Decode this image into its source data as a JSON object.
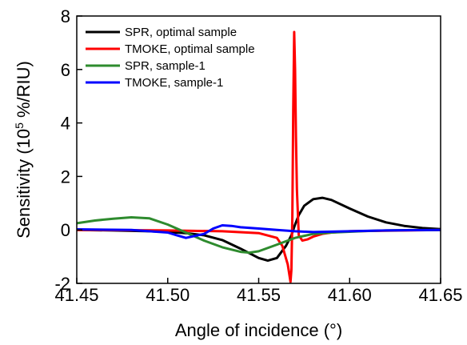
{
  "chart_data": {
    "type": "line",
    "xlabel": "Angle of incidence (°)",
    "ylabel": {
      "prefix": "Sensitivity (10",
      "superscript": "5",
      "suffix": " %/RIU)"
    },
    "xlim": [
      41.45,
      41.65
    ],
    "ylim": [
      -2,
      8
    ],
    "xticks": [
      "41.45",
      "41.50",
      "41.55",
      "41.60",
      "41.65"
    ],
    "yticks": [
      "-2",
      "0",
      "2",
      "4",
      "6",
      "8"
    ],
    "grid": false,
    "legend_position": "top-left",
    "series": [
      {
        "name": "SPR, optimal sample",
        "color": "#000000",
        "x": [
          41.45,
          41.47,
          41.49,
          41.5,
          41.51,
          41.52,
          41.53,
          41.54,
          41.55,
          41.555,
          41.56,
          41.565,
          41.568,
          41.57,
          41.572,
          41.575,
          41.58,
          41.585,
          41.59,
          41.6,
          41.61,
          41.62,
          41.63,
          41.64,
          41.65
        ],
        "y": [
          0.0,
          -0.02,
          -0.05,
          -0.08,
          -0.12,
          -0.2,
          -0.38,
          -0.7,
          -1.05,
          -1.15,
          -1.05,
          -0.6,
          -0.2,
          0.2,
          0.55,
          0.9,
          1.15,
          1.2,
          1.12,
          0.8,
          0.5,
          0.28,
          0.15,
          0.07,
          0.03
        ]
      },
      {
        "name": "TMOKE, optimal sample",
        "color": "#ff0000",
        "x": [
          41.45,
          41.5,
          41.53,
          41.55,
          41.56,
          41.563,
          41.566,
          41.5675,
          41.568,
          41.5685,
          41.569,
          41.5695,
          41.57,
          41.5705,
          41.571,
          41.572,
          41.574,
          41.577,
          41.58,
          41.585,
          41.59,
          41.6,
          41.65
        ],
        "y": [
          0.0,
          -0.02,
          -0.05,
          -0.12,
          -0.3,
          -0.6,
          -1.3,
          -1.95,
          -1.5,
          0.5,
          4.5,
          7.4,
          6.0,
          3.5,
          1.5,
          -0.2,
          -0.4,
          -0.35,
          -0.25,
          -0.15,
          -0.1,
          -0.05,
          0.0
        ]
      },
      {
        "name": "SPR, sample-1",
        "color": "#2e8b2e",
        "x": [
          41.45,
          41.46,
          41.47,
          41.48,
          41.49,
          41.5,
          41.51,
          41.52,
          41.53,
          41.54,
          41.545,
          41.55,
          41.56,
          41.57,
          41.58,
          41.59,
          41.6,
          41.61,
          41.62,
          41.63,
          41.65
        ],
        "y": [
          0.25,
          0.35,
          0.42,
          0.47,
          0.43,
          0.2,
          -0.1,
          -0.4,
          -0.65,
          -0.82,
          -0.85,
          -0.8,
          -0.55,
          -0.3,
          -0.15,
          -0.1,
          -0.07,
          -0.04,
          -0.02,
          -0.01,
          0.0
        ]
      },
      {
        "name": "TMOKE, sample-1",
        "color": "#0000ff",
        "x": [
          41.45,
          41.48,
          41.5,
          41.505,
          41.51,
          41.52,
          41.525,
          41.53,
          41.535,
          41.54,
          41.55,
          41.56,
          41.57,
          41.58,
          41.6,
          41.62,
          41.65
        ],
        "y": [
          0.02,
          0.0,
          -0.1,
          -0.2,
          -0.3,
          -0.15,
          0.05,
          0.17,
          0.15,
          0.1,
          0.05,
          0.0,
          -0.05,
          -0.08,
          -0.05,
          -0.02,
          0.0
        ]
      }
    ]
  }
}
